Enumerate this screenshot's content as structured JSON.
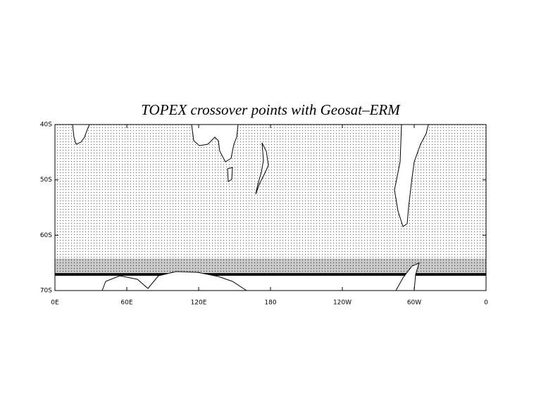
{
  "chart_data": {
    "type": "map",
    "title": "TOPEX crossover points with Geosat–ERM",
    "xlim": [
      0,
      360
    ],
    "ylim": [
      -70,
      -40
    ],
    "xticks": [
      {
        "value": 0,
        "label": "0E"
      },
      {
        "value": 60,
        "label": "60E"
      },
      {
        "value": 120,
        "label": "120E"
      },
      180,
      {
        "value": 240,
        "label": "120W"
      },
      {
        "value": 300,
        "label": "60W"
      },
      {
        "value": 360,
        "label": "0"
      }
    ],
    "yticks": [
      {
        "value": -70,
        "label": "70S"
      },
      {
        "value": -60,
        "label": "60S"
      },
      {
        "value": -50,
        "label": "50S"
      },
      {
        "value": -40,
        "label": "40S"
      }
    ]
  }
}
